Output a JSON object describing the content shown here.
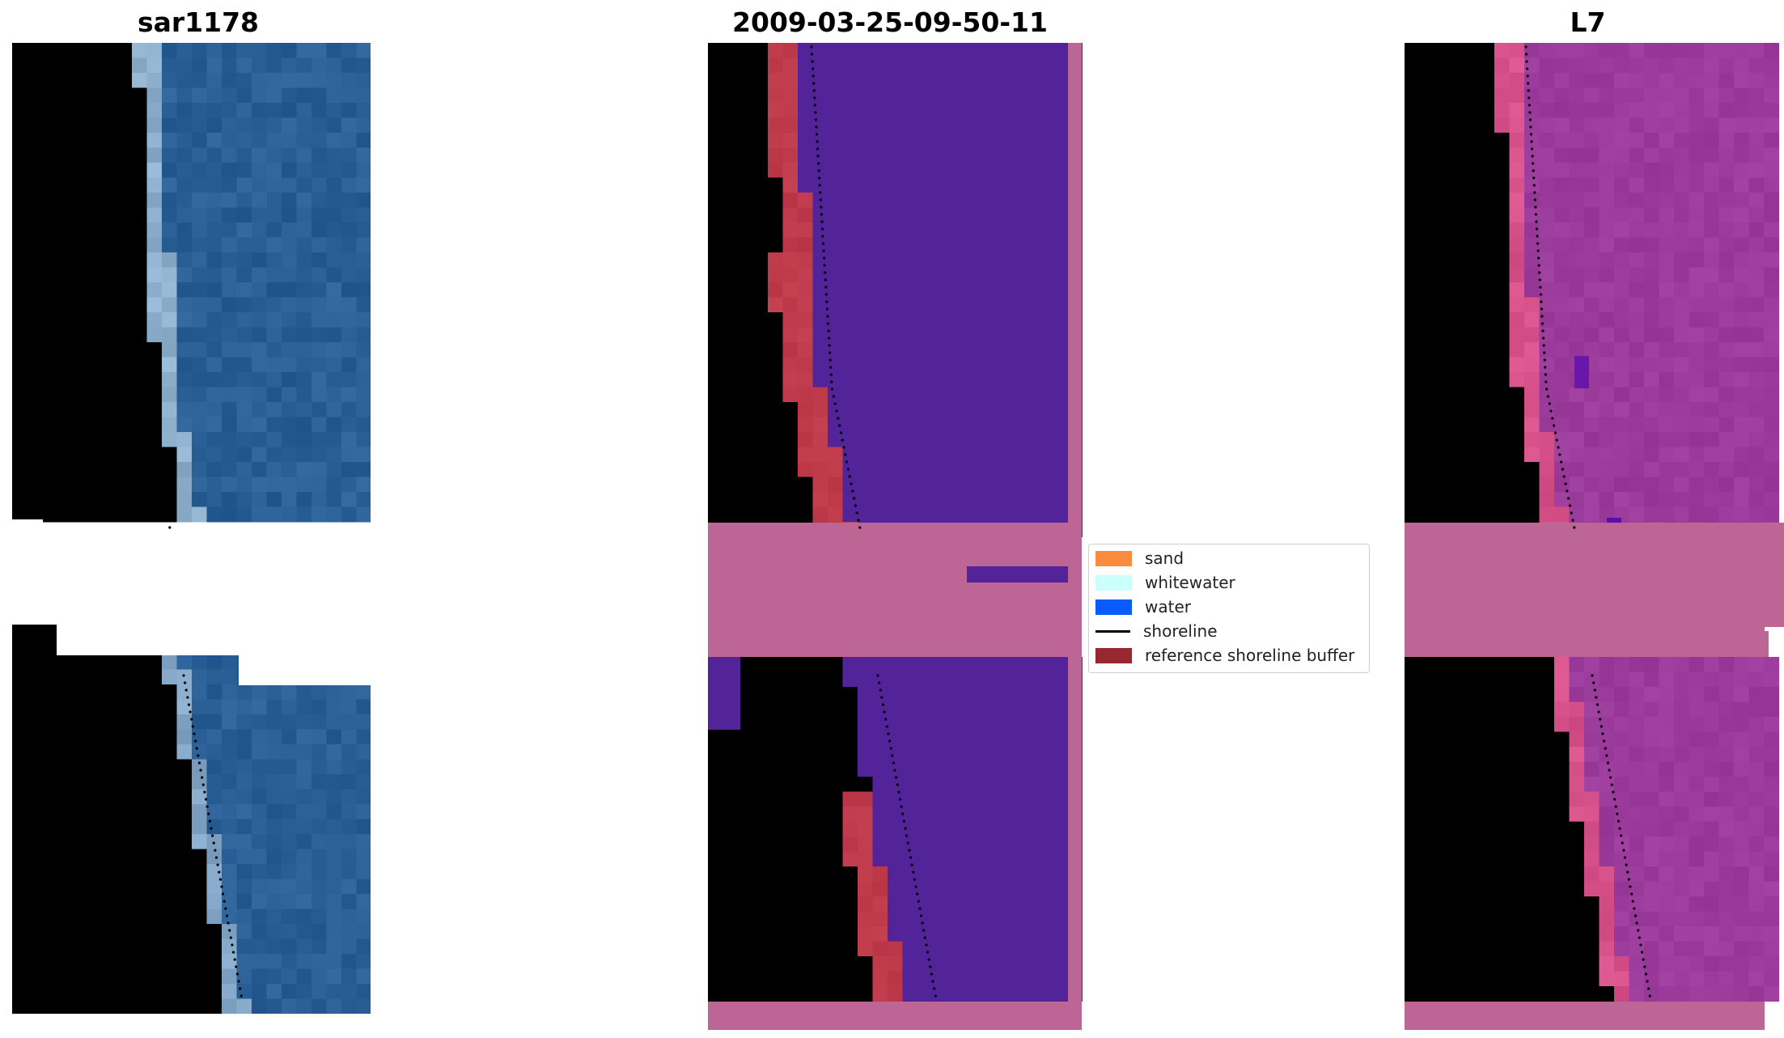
{
  "panels": [
    {
      "title": "sar1178"
    },
    {
      "title": "2009-03-25-09-50-11"
    },
    {
      "title": "L7"
    }
  ],
  "legend": {
    "items": [
      {
        "label": "sand",
        "kind": "patch",
        "color": "#f98c3f"
      },
      {
        "label": "whitewater",
        "kind": "patch",
        "color": "#ccfffc"
      },
      {
        "label": "water",
        "kind": "patch",
        "color": "#0a5cfa"
      },
      {
        "label": "shoreline",
        "kind": "line",
        "color": "#000000"
      },
      {
        "label": "reference shoreline buffer",
        "kind": "patch",
        "color": "#96282f"
      }
    ]
  },
  "colors": {
    "nodata_fill": "#bd6696",
    "rgb_water": "#2a5f96",
    "class_water": "#53239a",
    "class_buffer": "#bf3a4a",
    "l7_land": "#c81446",
    "l7_water": "#9b3c9c"
  }
}
